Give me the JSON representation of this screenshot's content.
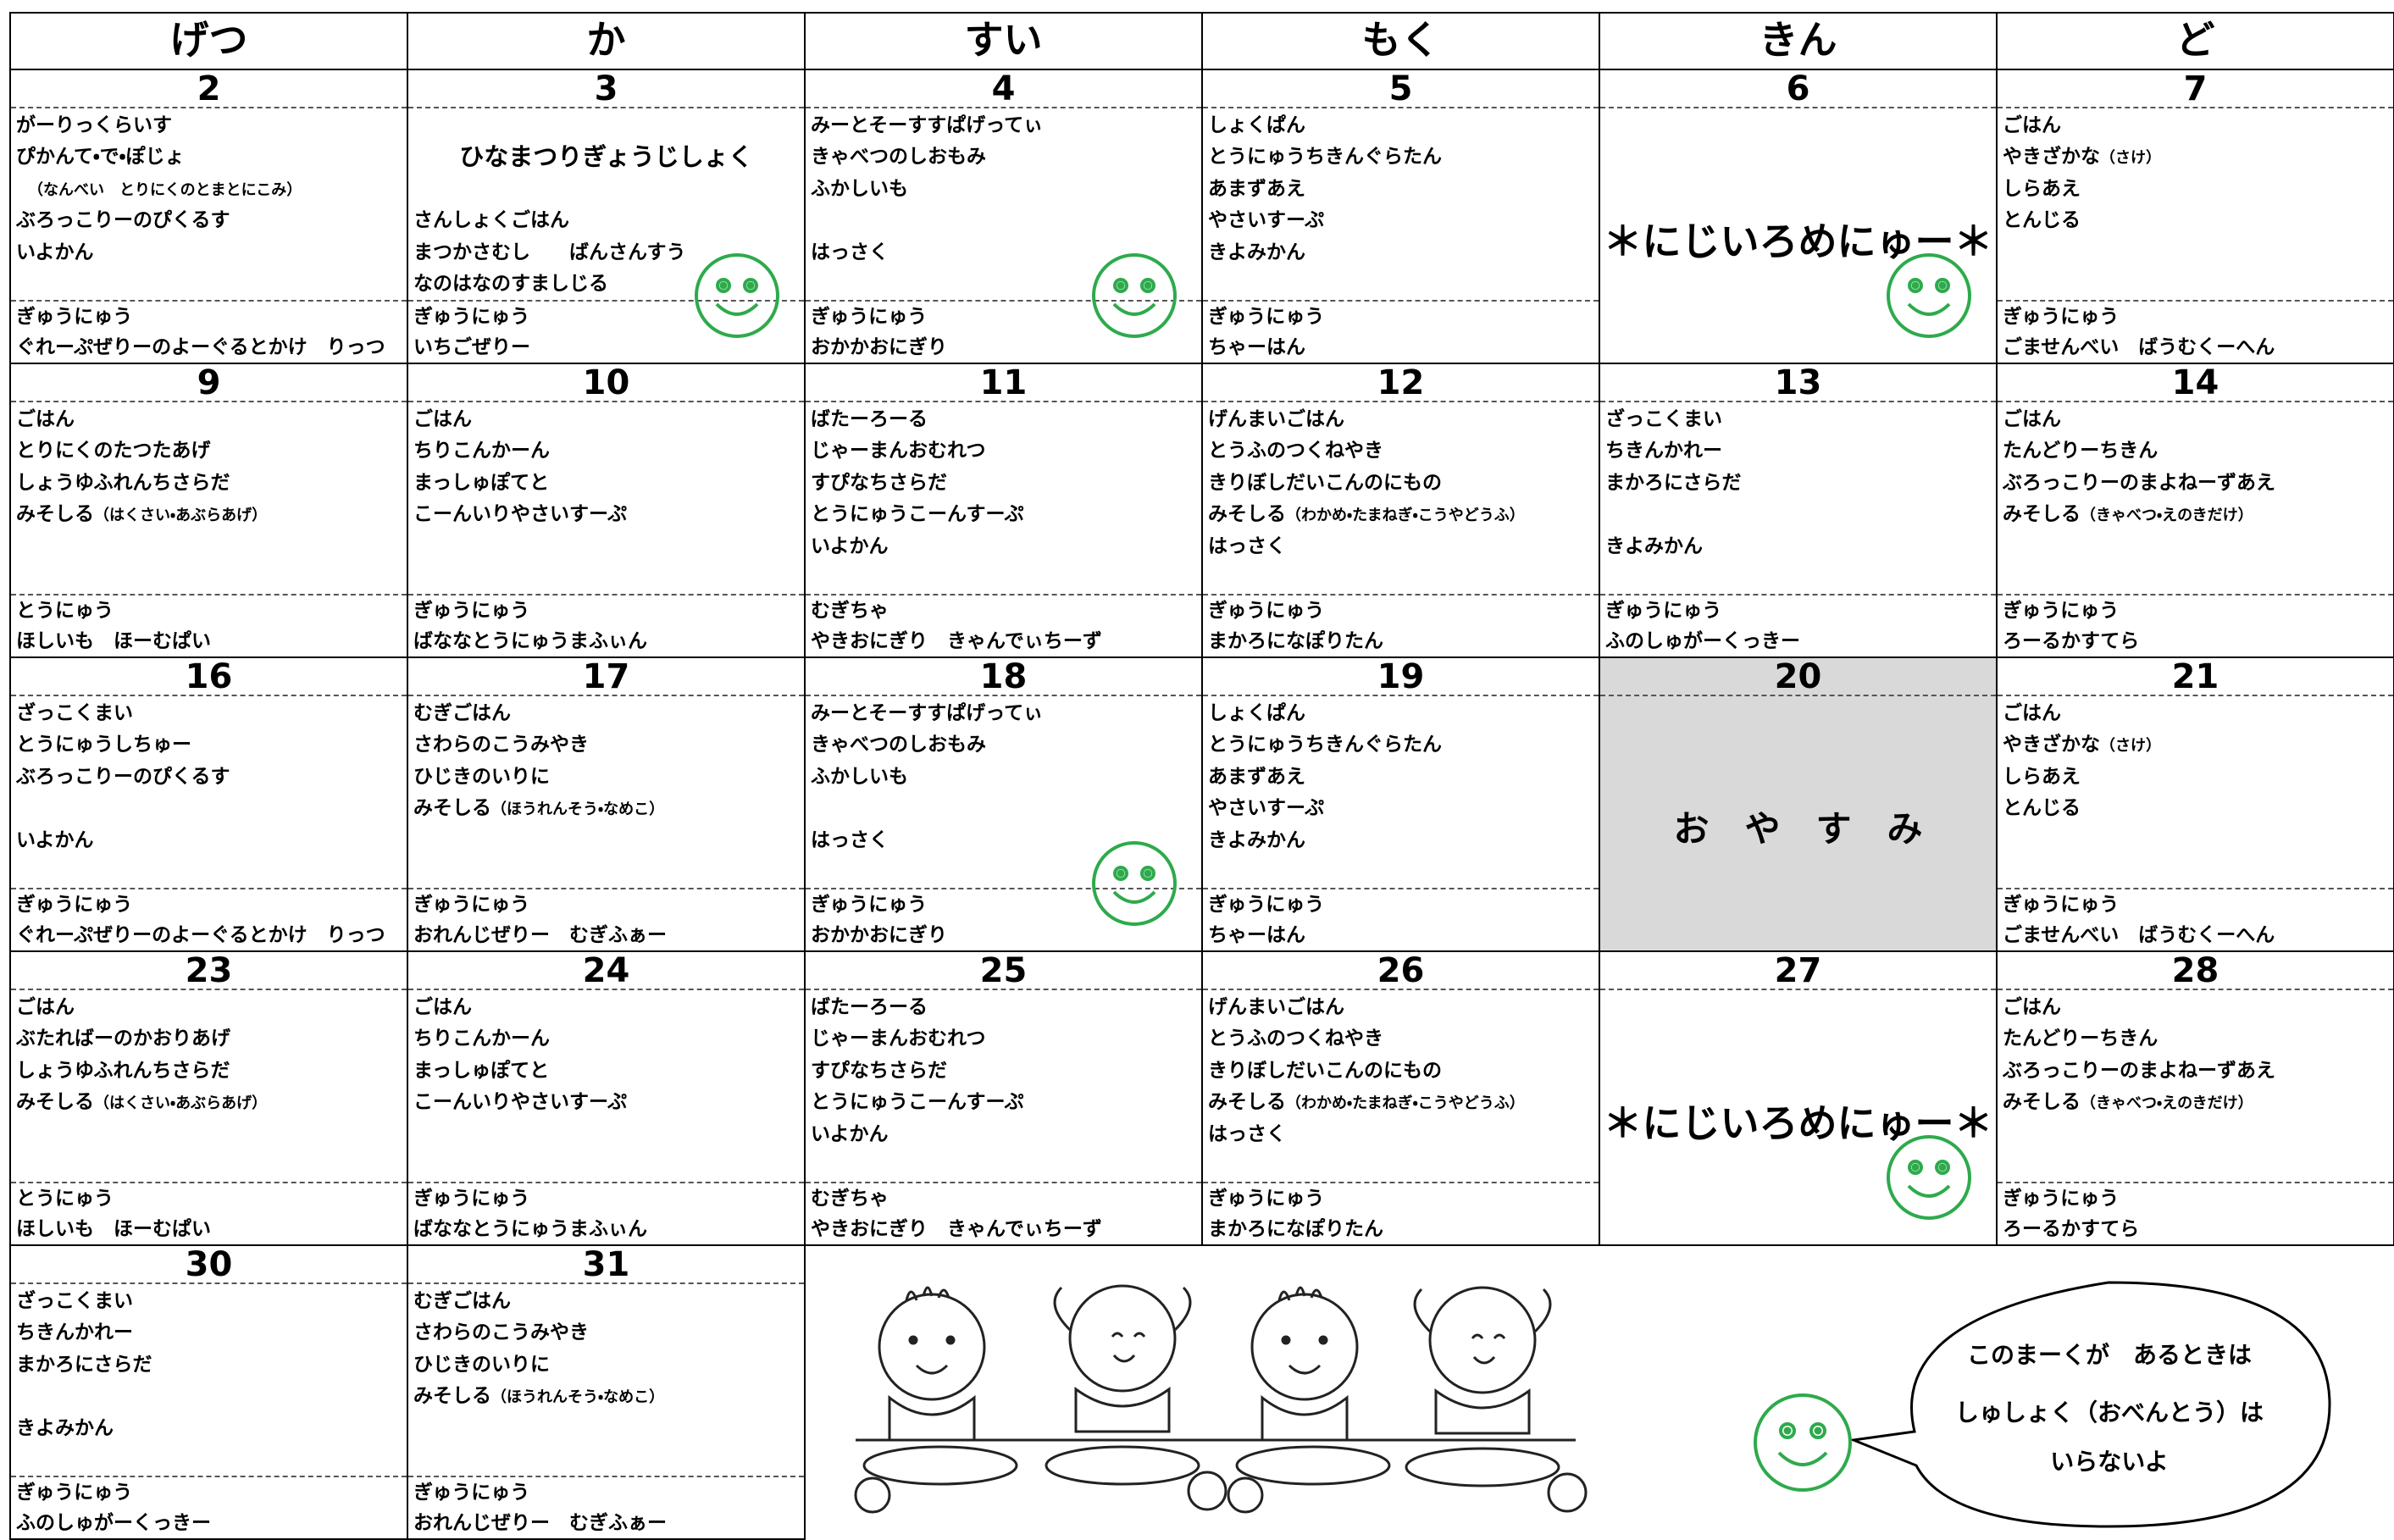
{
  "header": {
    "days": [
      "げつ",
      "か",
      "すい",
      "もく",
      "きん",
      "ど"
    ]
  },
  "weeks": [
    {
      "days": [
        {
          "date": "2",
          "lunch": [
            "がーりっくらいす",
            "ぴかんて・で・ぽじょ",
            "　（なんべい　とりにくのとまとにこみ）",
            "ぶろっこりーのぴくるす",
            "いよかん"
          ],
          "snack": [
            "ぎゅうにゅう",
            "ぐれーぷぜりーのよーぐるとかけ　りっつ"
          ]
        },
        {
          "date": "3",
          "event": "ひなまつりぎょうじしょく",
          "lunch": [
            null,
            null,
            null,
            "さんしょくごはん",
            "まつかさむし　　ばんさんすう",
            "なのはなのすましじる"
          ],
          "snack": [
            "ぎゅうにゅう",
            "いちごぜりー"
          ],
          "bento_mark": true
        },
        {
          "date": "4",
          "lunch": [
            "みーとそーすすぱげってぃ",
            "きゃべつのしおもみ",
            "ふかしいも",
            null,
            "はっさく"
          ],
          "snack": [
            "ぎゅうにゅう",
            "おかかおにぎり"
          ],
          "bento_mark": true
        },
        {
          "date": "5",
          "lunch": [
            "しょくぱん",
            "とうにゅうちきんぐらたん",
            "あまずあえ",
            "やさいすーぷ",
            "きよみかん"
          ],
          "snack": [
            "ぎゅうにゅう",
            "ちゃーはん"
          ]
        },
        {
          "date": "6",
          "message": "＊にじいろめにゅー＊",
          "bento_mark": true
        },
        {
          "date": "7",
          "lunch": [
            "ごはん",
            "やきざかな（さけ）",
            "しらあえ",
            "とんじる"
          ],
          "snack": [
            "ぎゅうにゅう",
            "ごませんべい　ばうむくーへん"
          ]
        }
      ]
    },
    {
      "days": [
        {
          "date": "9",
          "lunch": [
            "ごはん",
            "とりにくのたつたあげ",
            "しょうゆふれんちさらだ",
            "みそしる（はくさい・あぶらあげ）"
          ],
          "snack": [
            "とうにゅう",
            "ほしいも　ほーむぱい"
          ]
        },
        {
          "date": "10",
          "lunch": [
            "ごはん",
            "ちりこんかーん",
            "まっしゅぽてと",
            "こーんいりやさいすーぷ"
          ],
          "snack": [
            "ぎゅうにゅう",
            "ばななとうにゅうまふぃん"
          ]
        },
        {
          "date": "11",
          "lunch": [
            "ばたーろーる",
            "じゃーまんおむれつ",
            "すぴなちさらだ",
            "とうにゅうこーんすーぷ",
            "いよかん"
          ],
          "snack": [
            "むぎちゃ",
            "やきおにぎり　きゃんでぃちーず"
          ]
        },
        {
          "date": "12",
          "lunch": [
            "げんまいごはん",
            "とうふのつくねやき",
            "きりぼしだいこんのにもの",
            "みそしる（わかめ・たまねぎ・こうやどうふ）",
            "はっさく"
          ],
          "snack": [
            "ぎゅうにゅう",
            "まかろになぽりたん"
          ]
        },
        {
          "date": "13",
          "lunch": [
            "ざっこくまい",
            "ちきんかれー",
            "まかろにさらだ",
            null,
            "きよみかん"
          ],
          "snack": [
            "ぎゅうにゅう",
            "ふのしゅがーくっきー"
          ]
        },
        {
          "date": "14",
          "lunch": [
            "ごはん",
            "たんどりーちきん",
            "ぶろっこりーのまよねーずあえ",
            "みそしる（きゃべつ・えのきだけ）"
          ],
          "snack": [
            "ぎゅうにゅう",
            "ろーるかすてら"
          ]
        }
      ]
    },
    {
      "days": [
        {
          "date": "16",
          "lunch": [
            "ざっこくまい",
            "とうにゅうしちゅー",
            "ぶろっこりーのぴくるす",
            null,
            "いよかん"
          ],
          "snack": [
            "ぎゅうにゅう",
            "ぐれーぷぜりーのよーぐるとかけ　りっつ"
          ]
        },
        {
          "date": "17",
          "lunch": [
            "むぎごはん",
            "さわらのこうみやき",
            "ひじきのいりに",
            "みそしる（ほうれんそう・なめこ）"
          ],
          "snack": [
            "ぎゅうにゅう",
            "おれんじぜりー　むぎふぁー"
          ]
        },
        {
          "date": "18",
          "lunch": [
            "みーとそーすすぱげってぃ",
            "きゃべつのしおもみ",
            "ふかしいも",
            null,
            "はっさく"
          ],
          "snack": [
            "ぎゅうにゅう",
            "おかかおにぎり"
          ],
          "bento_mark": true
        },
        {
          "date": "19",
          "lunch": [
            "しょくぱん",
            "とうにゅうちきんぐらたん",
            "あまずあえ",
            "やさいすーぷ",
            "きよみかん"
          ],
          "snack": [
            "ぎゅうにゅう",
            "ちゃーはん"
          ]
        },
        {
          "date": "20",
          "message": "お　や　す　み",
          "closed": true
        },
        {
          "date": "21",
          "lunch": [
            "ごはん",
            "やきざかな（さけ）",
            "しらあえ",
            "とんじる"
          ],
          "snack": [
            "ぎゅうにゅう",
            "ごませんべい　ばうむくーへん"
          ]
        }
      ]
    },
    {
      "days": [
        {
          "date": "23",
          "lunch": [
            "ごはん",
            "ぶたればーのかおりあげ",
            "しょうゆふれんちさらだ",
            "みそしる（はくさい・あぶらあげ）"
          ],
          "snack": [
            "とうにゅう",
            "ほしいも　ほーむぱい"
          ]
        },
        {
          "date": "24",
          "lunch": [
            "ごはん",
            "ちりこんかーん",
            "まっしゅぽてと",
            "こーんいりやさいすーぷ"
          ],
          "snack": [
            "ぎゅうにゅう",
            "ばななとうにゅうまふぃん"
          ]
        },
        {
          "date": "25",
          "lunch": [
            "ばたーろーる",
            "じゃーまんおむれつ",
            "すぴなちさらだ",
            "とうにゅうこーんすーぷ",
            "いよかん"
          ],
          "snack": [
            "むぎちゃ",
            "やきおにぎり　きゃんでぃちーず"
          ]
        },
        {
          "date": "26",
          "lunch": [
            "げんまいごはん",
            "とうふのつくねやき",
            "きりぼしだいこんのにもの",
            "みそしる（わかめ・たまねぎ・こうやどうふ）",
            "はっさく"
          ],
          "snack": [
            "ぎゅうにゅう",
            "まかろになぽりたん"
          ]
        },
        {
          "date": "27",
          "message": "＊にじいろめにゅー＊",
          "bento_mark": true
        },
        {
          "date": "28",
          "lunch": [
            "ごはん",
            "たんどりーちきん",
            "ぶろっこりーのまよねーずあえ",
            "みそしる（きゃべつ・えのきだけ）"
          ],
          "snack": [
            "ぎゅうにゅう",
            "ろーるかすてら"
          ]
        }
      ]
    },
    {
      "days": [
        {
          "date": "30",
          "lunch": [
            "ざっこくまい",
            "ちきんかれー",
            "まかろにさらだ",
            null,
            "きよみかん"
          ],
          "snack": [
            "ぎゅうにゅう",
            "ふのしゅがーくっきー"
          ]
        },
        {
          "date": "31",
          "lunch": [
            "むぎごはん",
            "さわらのこうみやき",
            "ひじきのいりに",
            "みそしる（ほうれんそう・なめこ）"
          ],
          "snack": [
            "ぎゅうにゅう",
            "おれんじぜりー　むぎふぁー"
          ]
        }
      ]
    }
  ],
  "note": {
    "lines": [
      "このまーくが　あるときは",
      "しゅしょく（おべんとう）は",
      "いらないよ"
    ]
  }
}
